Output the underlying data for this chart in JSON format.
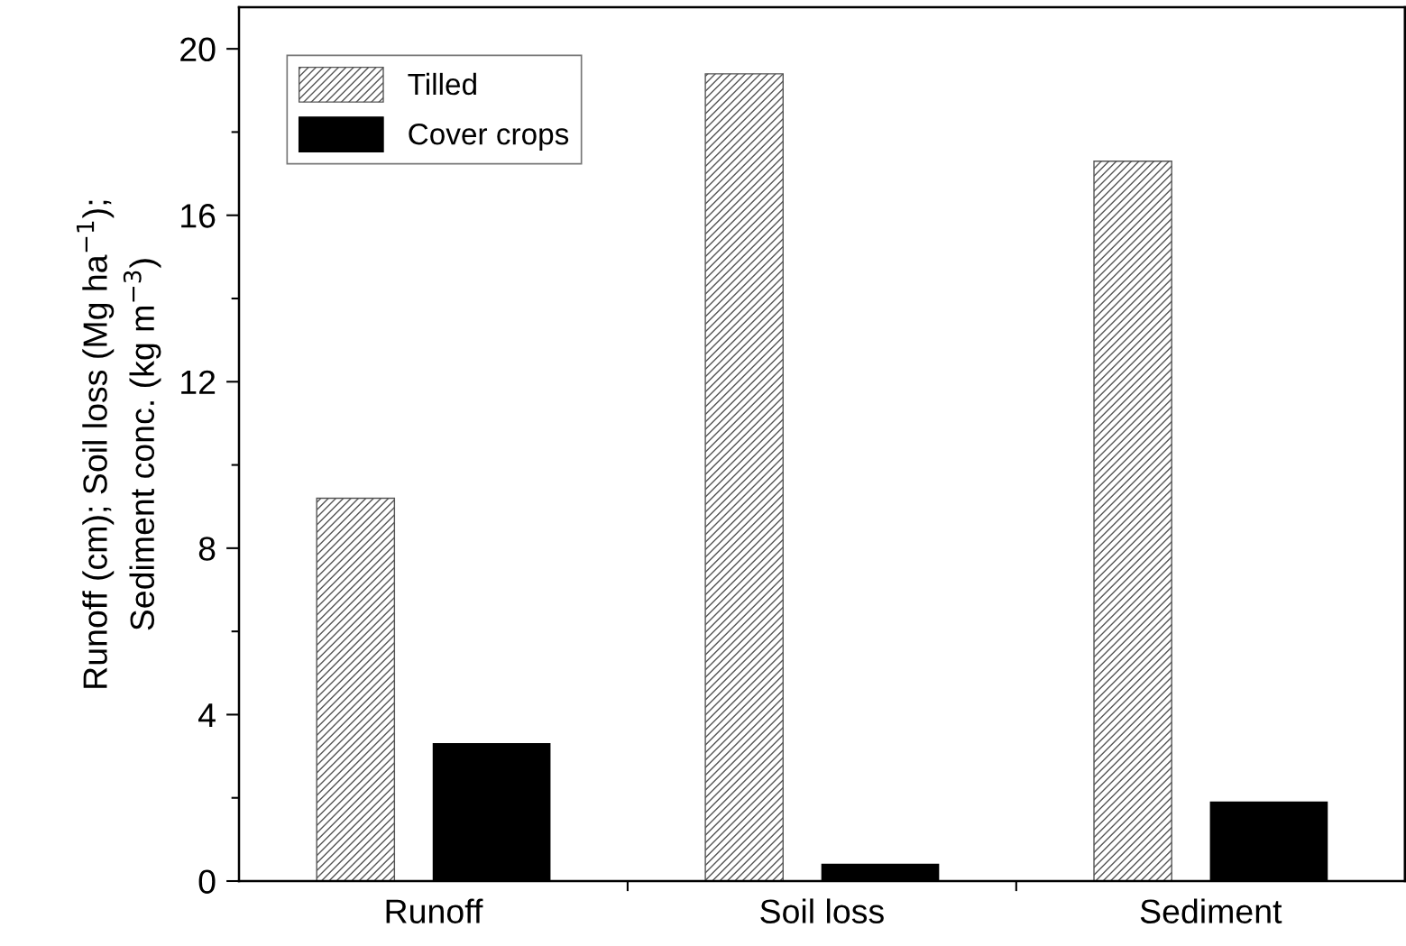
{
  "chart_data": {
    "type": "bar",
    "ylabel": "Runoff (cm); Soil loss (Mg ha$^{−1}$);\nSediment conc. (kg m$^{−3}$)",
    "categories": [
      "Runoff",
      "Soil loss",
      "Sediment"
    ],
    "series": [
      {
        "name": "Tilled",
        "color": "#555555",
        "values": [
          9.2,
          19.4,
          17.3
        ]
      },
      {
        "name": "Cover crops",
        "color": "#000000",
        "values": [
          3.3,
          0.4,
          1.9
        ]
      }
    ],
    "ylim": [
      0,
      21
    ],
    "yticks": [
      0,
      4,
      8,
      12,
      16,
      20
    ],
    "grid": false,
    "legend": "top left"
  }
}
